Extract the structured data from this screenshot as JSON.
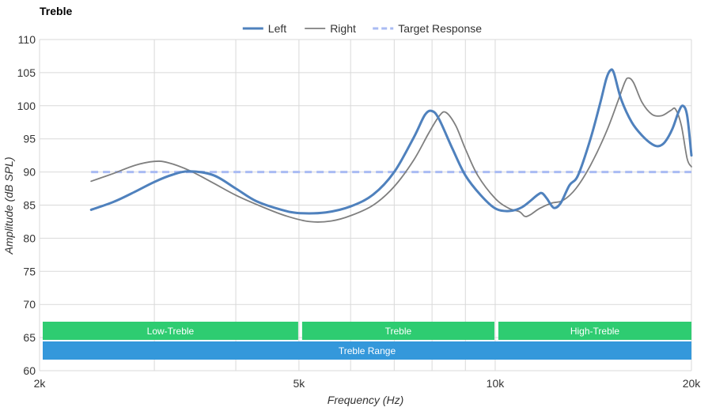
{
  "chart_data": {
    "type": "line",
    "title": "Treble",
    "xlabel": "Frequency (Hz)",
    "ylabel": "Amplitude (dB SPL)",
    "x_scale": "log",
    "xlim": [
      2000,
      20000
    ],
    "ylim": [
      60,
      110
    ],
    "x_ticks": [
      {
        "value": 2000,
        "label": "2k"
      },
      {
        "value": 5000,
        "label": "5k"
      },
      {
        "value": 10000,
        "label": "10k"
      },
      {
        "value": 20000,
        "label": "20k"
      }
    ],
    "x_minor_gridlines": [
      3000,
      4000,
      6000,
      7000,
      8000,
      9000
    ],
    "y_ticks": [
      60,
      65,
      70,
      75,
      80,
      85,
      90,
      95,
      100,
      105,
      110
    ],
    "grid": true,
    "legend": "top-center",
    "series": [
      {
        "name": "Left",
        "color": "#4f81bd",
        "style": "solid-thick",
        "points": [
          [
            2400,
            84.3
          ],
          [
            2600,
            85.5
          ],
          [
            2800,
            87.0
          ],
          [
            3000,
            88.5
          ],
          [
            3200,
            89.6
          ],
          [
            3400,
            90.1
          ],
          [
            3700,
            89.5
          ],
          [
            4000,
            87.5
          ],
          [
            4300,
            85.6
          ],
          [
            4700,
            84.3
          ],
          [
            5000,
            83.8
          ],
          [
            5500,
            83.9
          ],
          [
            6000,
            84.8
          ],
          [
            6500,
            86.6
          ],
          [
            7000,
            90.0
          ],
          [
            7500,
            95.2
          ],
          [
            7800,
            98.6
          ],
          [
            8000,
            99.2
          ],
          [
            8200,
            98.0
          ],
          [
            8600,
            93.5
          ],
          [
            9000,
            89.5
          ],
          [
            9500,
            86.5
          ],
          [
            10000,
            84.5
          ],
          [
            10500,
            84.1
          ],
          [
            11000,
            84.7
          ],
          [
            11600,
            86.5
          ],
          [
            11800,
            86.8
          ],
          [
            12000,
            86.0
          ],
          [
            12300,
            84.6
          ],
          [
            12600,
            85.3
          ],
          [
            13000,
            88.0
          ],
          [
            13400,
            89.5
          ],
          [
            14000,
            95.0
          ],
          [
            14500,
            100.5
          ],
          [
            14800,
            104.0
          ],
          [
            15000,
            105.3
          ],
          [
            15200,
            105.0
          ],
          [
            15600,
            101.0
          ],
          [
            16200,
            97.5
          ],
          [
            16800,
            95.5
          ],
          [
            17400,
            94.2
          ],
          [
            17800,
            93.9
          ],
          [
            18200,
            94.5
          ],
          [
            18700,
            96.5
          ],
          [
            19100,
            99.0
          ],
          [
            19400,
            100.0
          ],
          [
            19700,
            98.5
          ],
          [
            20000,
            92.5
          ]
        ]
      },
      {
        "name": "Right",
        "color": "#7f7f7f",
        "style": "solid-thin",
        "points": [
          [
            2400,
            88.6
          ],
          [
            2600,
            89.8
          ],
          [
            2800,
            91.0
          ],
          [
            3000,
            91.6
          ],
          [
            3150,
            91.4
          ],
          [
            3400,
            90.2
          ],
          [
            3700,
            88.3
          ],
          [
            4000,
            86.5
          ],
          [
            4400,
            84.7
          ],
          [
            4800,
            83.3
          ],
          [
            5200,
            82.5
          ],
          [
            5600,
            82.6
          ],
          [
            6000,
            83.4
          ],
          [
            6500,
            85.0
          ],
          [
            7000,
            87.8
          ],
          [
            7500,
            91.8
          ],
          [
            7900,
            95.8
          ],
          [
            8200,
            98.4
          ],
          [
            8400,
            99.0
          ],
          [
            8700,
            97.0
          ],
          [
            9000,
            93.5
          ],
          [
            9400,
            89.5
          ],
          [
            10000,
            86.0
          ],
          [
            10500,
            84.5
          ],
          [
            10900,
            84.0
          ],
          [
            11100,
            83.3
          ],
          [
            11300,
            83.5
          ],
          [
            11700,
            84.5
          ],
          [
            12200,
            85.3
          ],
          [
            12700,
            85.7
          ],
          [
            13300,
            87.5
          ],
          [
            14000,
            91.0
          ],
          [
            14800,
            96.0
          ],
          [
            15400,
            100.5
          ],
          [
            15800,
            103.5
          ],
          [
            16000,
            104.2
          ],
          [
            16300,
            103.5
          ],
          [
            16800,
            100.5
          ],
          [
            17400,
            98.7
          ],
          [
            18000,
            98.5
          ],
          [
            18600,
            99.3
          ],
          [
            18900,
            99.5
          ],
          [
            19300,
            97.0
          ],
          [
            19700,
            92.0
          ],
          [
            20000,
            90.8
          ]
        ]
      },
      {
        "name": "Target Response",
        "color": "#a9bbf3",
        "style": "dashed",
        "points": [
          [
            2400,
            90
          ],
          [
            20000,
            90
          ]
        ]
      }
    ],
    "bands": [
      {
        "label": "Low-Treble",
        "from": 2000,
        "to": 5000,
        "color": "#2ecc71",
        "row": 1
      },
      {
        "label": "Treble",
        "from": 5000,
        "to": 10000,
        "color": "#2ecc71",
        "row": 1
      },
      {
        "label": "High-Treble",
        "from": 10000,
        "to": 20000,
        "color": "#2ecc71",
        "row": 1
      },
      {
        "label": "Treble Range",
        "from": 2000,
        "to": 20000,
        "color": "#3498db",
        "row": 2
      }
    ]
  }
}
